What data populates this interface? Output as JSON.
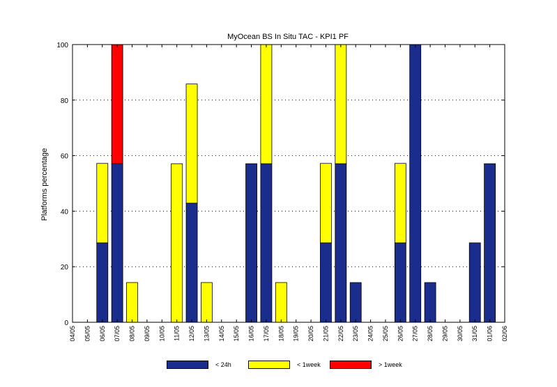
{
  "chart_data": {
    "type": "bar",
    "stacked": true,
    "title": "MyOcean  BS In Situ TAC - KPI1  PF",
    "xlabel": "",
    "ylabel": "Platforms percentage",
    "ylim": [
      0,
      100
    ],
    "yticks": [
      0,
      20,
      40,
      60,
      80,
      100
    ],
    "grid": true,
    "legend_position": "bottom",
    "categories": [
      "04/05",
      "05/05",
      "06/05",
      "07/05",
      "08/05",
      "09/05",
      "10/05",
      "11/05",
      "12/05",
      "13/05",
      "14/05",
      "15/05",
      "16/05",
      "17/05",
      "18/05",
      "19/05",
      "20/05",
      "21/05",
      "22/05",
      "23/05",
      "24/05",
      "25/05",
      "26/05",
      "27/05",
      "28/05",
      "29/05",
      "30/05",
      "31/05",
      "01/06",
      "02/06"
    ],
    "series": [
      {
        "name": "< 24h",
        "color": "#1a2d8c",
        "values": [
          0,
          0,
          28.6,
          57.1,
          0,
          0,
          0,
          0,
          42.9,
          0,
          0,
          0,
          57.1,
          57.1,
          0,
          0,
          0,
          28.6,
          57.1,
          14.3,
          0,
          0,
          28.6,
          100,
          14.3,
          0,
          0,
          28.6,
          57.1,
          0
        ]
      },
      {
        "name": "< 1week",
        "color": "#ffff00",
        "values": [
          0,
          0,
          28.6,
          0,
          14.3,
          0,
          0,
          57.1,
          42.9,
          14.3,
          0,
          0,
          0,
          42.9,
          14.3,
          0,
          0,
          28.6,
          42.9,
          0,
          0,
          0,
          28.6,
          0,
          0,
          0,
          0,
          0,
          0,
          0
        ]
      },
      {
        "name": "> 1week",
        "color": "#ff0000",
        "values": [
          0,
          0,
          0,
          42.9,
          0,
          0,
          0,
          0,
          0,
          0,
          0,
          0,
          0,
          0,
          0,
          0,
          0,
          0,
          0,
          0,
          0,
          0,
          0,
          0,
          0,
          0,
          0,
          0,
          0,
          0
        ]
      }
    ]
  }
}
